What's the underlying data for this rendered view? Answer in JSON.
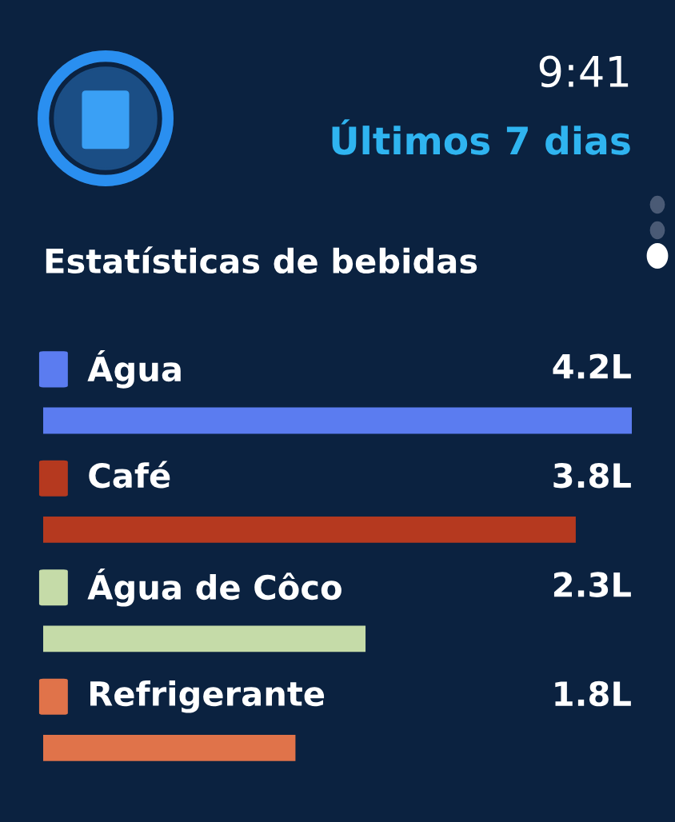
{
  "chart_data": {
    "type": "bar",
    "orientation": "horizontal",
    "title": "Estatísticas de bebidas",
    "subtitle": "Últimos 7 dias",
    "annotations": [
      "9:41"
    ],
    "categories": [
      "Água",
      "Café",
      "Água de Côco",
      "Refrigerante"
    ],
    "values": [
      4.2,
      3.8,
      2.3,
      1.8
    ],
    "colors": [
      "#5b7cf0",
      "#b5391f",
      "#c5dba8",
      "#e0734a"
    ],
    "value_labels": [
      "4.2L",
      "3.8L",
      "2.3L",
      "1.8L"
    ],
    "data_labels": true
  }
}
